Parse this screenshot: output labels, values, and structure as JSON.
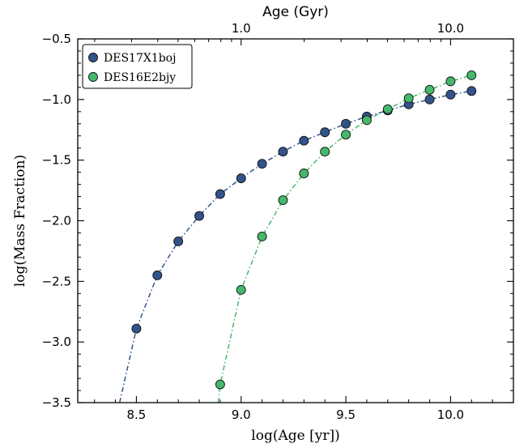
{
  "chart_data": {
    "type": "scatter",
    "xlabel": "log(Age [yr])",
    "ylabel": "log(Mass Fraction)",
    "top_xlabel": "Age (Gyr)",
    "xlim": [
      8.22,
      10.3
    ],
    "ylim": [
      -3.5,
      -0.5
    ],
    "x_ticks": [
      8.5,
      9.0,
      9.5,
      10.0
    ],
    "x_tick_labels": [
      "8.5",
      "9.0",
      "9.5",
      "10.0"
    ],
    "y_ticks": [
      -3.5,
      -3.0,
      -2.5,
      -2.0,
      -1.5,
      -1.0,
      -0.5
    ],
    "y_tick_labels": [
      "−3.5",
      "−3.0",
      "−2.5",
      "−2.0",
      "−1.5",
      "−1.0",
      "−0.5"
    ],
    "top_ticks": [
      1.0,
      10.0
    ],
    "top_tick_labels": [
      "1.0",
      "10.0"
    ],
    "legend_position": "top-left",
    "series": [
      {
        "name": "DES17X1boj",
        "color": "#33548a",
        "x": [
          8.5,
          8.6,
          8.7,
          8.8,
          8.9,
          9.0,
          9.1,
          9.2,
          9.3,
          9.4,
          9.5,
          9.6,
          9.7,
          9.8,
          9.9,
          10.0,
          10.1
        ],
        "y": [
          -2.89,
          -2.45,
          -2.17,
          -1.96,
          -1.78,
          -1.65,
          -1.53,
          -1.43,
          -1.34,
          -1.27,
          -1.2,
          -1.14,
          -1.09,
          -1.04,
          -1.0,
          -0.96,
          -0.93
        ],
        "line_start": [
          8.42,
          -3.5
        ]
      },
      {
        "name": "DES16E2bjy",
        "color": "#45b86b",
        "x": [
          8.9,
          9.0,
          9.1,
          9.2,
          9.3,
          9.4,
          9.5,
          9.6,
          9.7,
          9.8,
          9.9,
          10.0,
          10.1
        ],
        "y": [
          -3.35,
          -2.57,
          -2.13,
          -1.83,
          -1.61,
          -1.43,
          -1.29,
          -1.17,
          -1.08,
          -0.99,
          -0.92,
          -0.85,
          -0.8
        ],
        "line_start": [
          8.89,
          -3.5
        ]
      }
    ]
  }
}
